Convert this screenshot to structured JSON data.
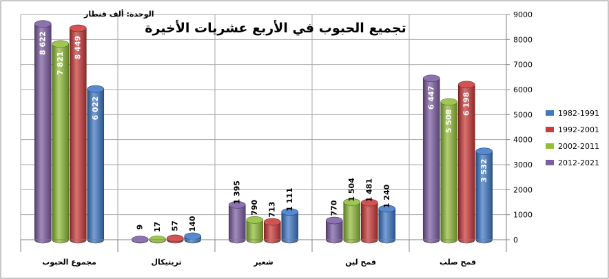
{
  "chart_data": {
    "type": "bar",
    "title": "تجميع الحبوب في الأربع عشريات الأخيرة",
    "unit_label": "الوحدة: ألف قنطار",
    "categories": [
      "مجموع الحبوب",
      "تريتيكال",
      "شعير",
      "قمح لين",
      "قمح صلب"
    ],
    "series": [
      {
        "name": "2012-2021",
        "color": "#7e5fa5",
        "values": [
          8622,
          9,
          1395,
          770,
          6447
        ],
        "labels": [
          "8 622",
          "9",
          "1 395",
          "770",
          "6 447"
        ]
      },
      {
        "name": "2002-2011",
        "color": "#92be3b",
        "values": [
          7821,
          17,
          790,
          1504,
          5508
        ],
        "labels": [
          "7 821",
          "17",
          "790",
          "1 504",
          "5 508"
        ]
      },
      {
        "name": "1992-2001",
        "color": "#cc3b3b",
        "values": [
          8449,
          57,
          713,
          1481,
          6198
        ],
        "labels": [
          "8 449",
          "57",
          "713",
          "1 481",
          "6 198"
        ]
      },
      {
        "name": "1982-1991",
        "color": "#3f79c6",
        "values": [
          6022,
          140,
          1111,
          1240,
          3532
        ],
        "labels": [
          "6 022",
          "140",
          "1 111",
          "1 240",
          "3 532"
        ]
      }
    ],
    "y_axis": {
      "position": "right",
      "min": 0,
      "max": 9000,
      "step": 1000,
      "ticks": [
        "0",
        "1000",
        "2000",
        "3000",
        "4000",
        "5000",
        "6000",
        "7000",
        "8000",
        "9000"
      ]
    },
    "legend": {
      "position": "right",
      "order": [
        "1982-1991",
        "1992-2001",
        "2002-2011",
        "2012-2021"
      ]
    },
    "grid": true
  }
}
